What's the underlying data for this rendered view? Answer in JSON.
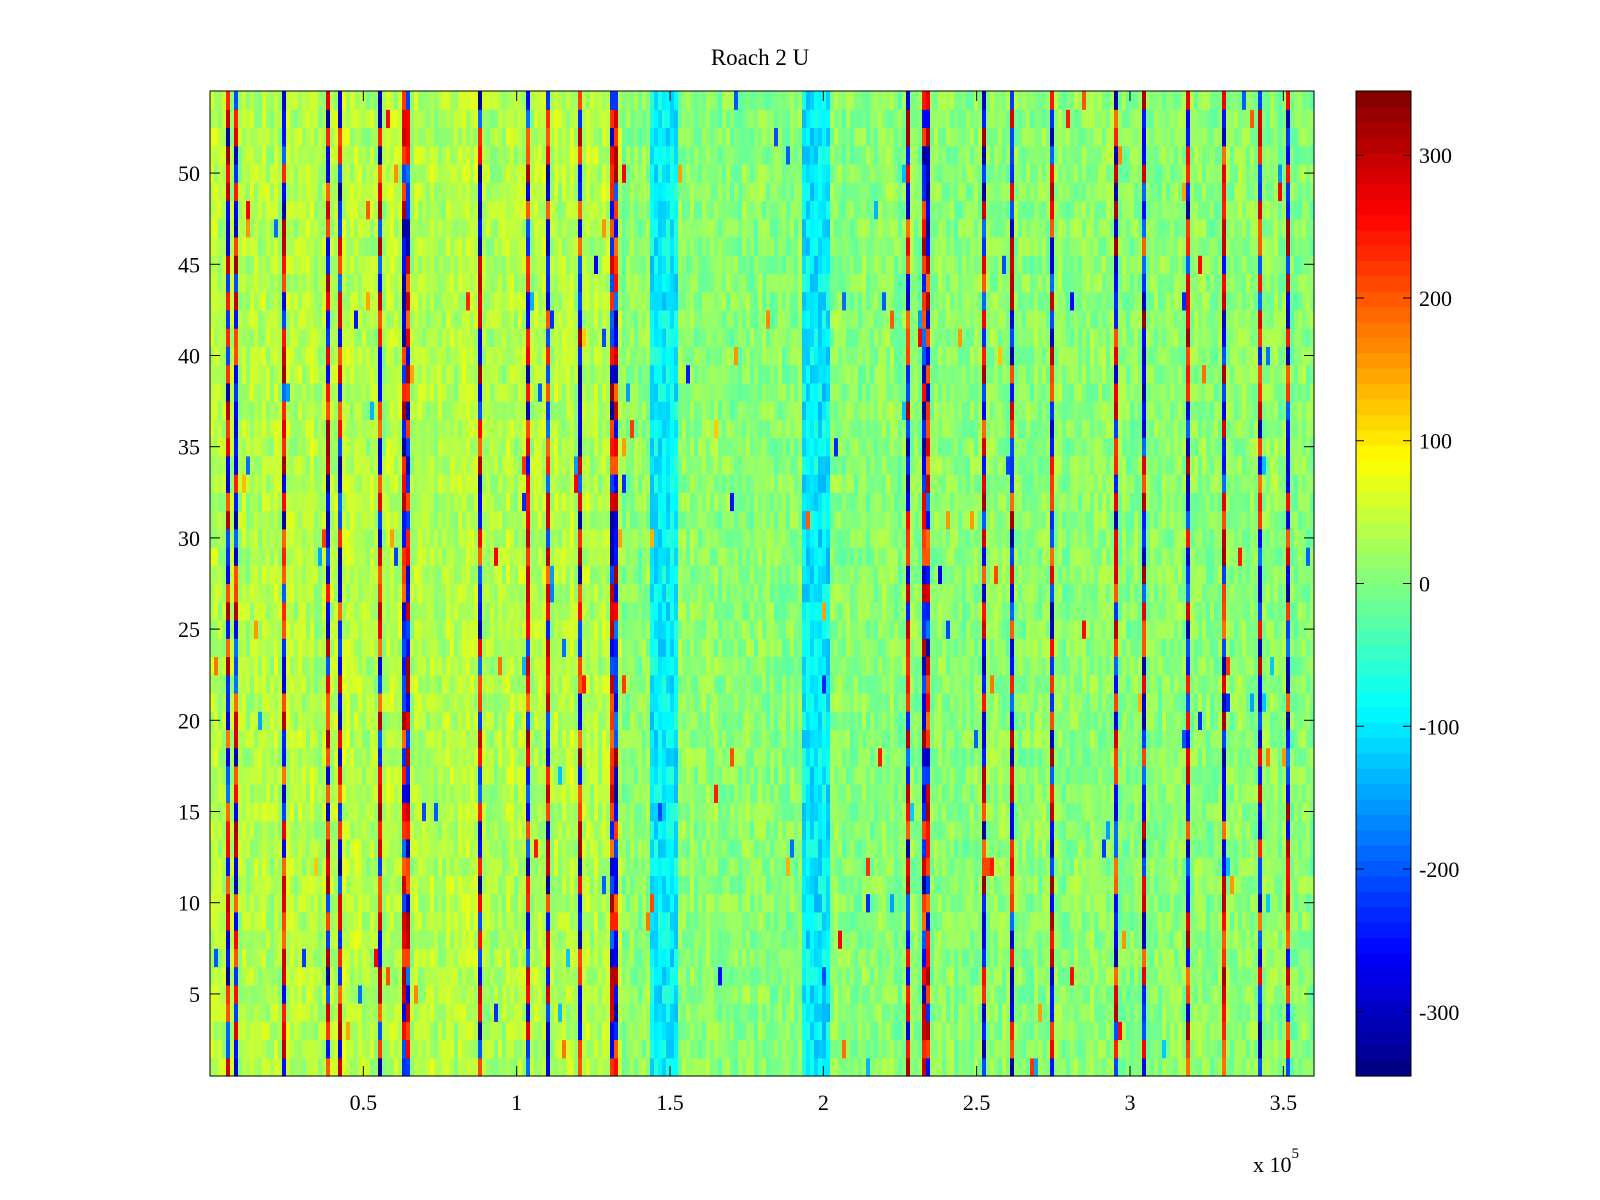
{
  "chart_data": {
    "type": "heatmap",
    "title": "Roach 2 U",
    "xlabel": "",
    "ylabel": "",
    "x_exponent_label": {
      "base": "x 10",
      "exponent": "5"
    },
    "xlim": [
      0,
      360000
    ],
    "ylim": [
      0.5,
      54.5
    ],
    "x_ticks": [
      {
        "value": 50000,
        "label": "0.5"
      },
      {
        "value": 100000,
        "label": "1"
      },
      {
        "value": 150000,
        "label": "1.5"
      },
      {
        "value": 200000,
        "label": "2"
      },
      {
        "value": 250000,
        "label": "2.5"
      },
      {
        "value": 300000,
        "label": "3"
      },
      {
        "value": 350000,
        "label": "3.5"
      }
    ],
    "y_ticks": [
      {
        "value": 5,
        "label": "5"
      },
      {
        "value": 10,
        "label": "10"
      },
      {
        "value": 15,
        "label": "15"
      },
      {
        "value": 20,
        "label": "20"
      },
      {
        "value": 25,
        "label": "25"
      },
      {
        "value": 30,
        "label": "30"
      },
      {
        "value": 35,
        "label": "35"
      },
      {
        "value": 40,
        "label": "40"
      },
      {
        "value": 45,
        "label": "45"
      },
      {
        "value": 50,
        "label": "50"
      }
    ],
    "rows": 54,
    "colorbar": {
      "colormap": "jet",
      "clim": [
        -345,
        345
      ],
      "location": "right",
      "ticks": [
        {
          "value": 300,
          "label": "300"
        },
        {
          "value": 200,
          "label": "200"
        },
        {
          "value": 100,
          "label": "100"
        },
        {
          "value": 0,
          "label": "0"
        },
        {
          "value": -100,
          "label": "-100"
        },
        {
          "value": -200,
          "label": "-200"
        },
        {
          "value": -300,
          "label": "-300"
        }
      ]
    },
    "cold_regions": [
      {
        "x_range": [
          143000,
          152000
        ],
        "y_range": [
          1,
          54
        ],
        "value": -110
      },
      {
        "x_range": [
          193000,
          202000
        ],
        "y_range": [
          1,
          54
        ],
        "value": -115
      }
    ],
    "warm_region": {
      "x_range": [
        0,
        135000
      ],
      "value": 35
    },
    "background_value": 0,
    "spike_columns_x": [
      6000,
      9000,
      24000,
      39000,
      42000,
      56000,
      63000,
      65000,
      88000,
      104000,
      110000,
      120000,
      131000,
      133000,
      227000,
      233000,
      234000,
      253000,
      262000,
      275000,
      295000,
      305000,
      319000,
      330000,
      343000,
      352000
    ]
  }
}
